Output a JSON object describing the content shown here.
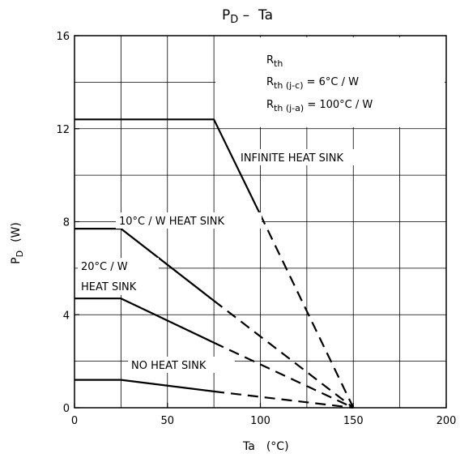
{
  "chart_data": {
    "type": "line",
    "title": {
      "main": "P",
      "sub": "D",
      "rest": " –  Ta"
    },
    "xlabel": {
      "main": "Ta",
      "unit": "(°C)"
    },
    "ylabel": {
      "main": "P",
      "sub": "D",
      "unit": "(W)"
    },
    "xlim": [
      0,
      200
    ],
    "ylim": [
      0,
      16
    ],
    "x_ticks": [
      0,
      50,
      100,
      150,
      200
    ],
    "y_ticks": [
      0,
      4,
      8,
      12,
      16
    ],
    "x_grid_step": 25,
    "y_grid_step": 2,
    "grid": true,
    "rth_box": {
      "line1": {
        "main": "R",
        "sub": "th",
        "rest": ""
      },
      "line2": {
        "main": "R",
        "sub": "th (j-c)",
        "rest": " = 6°C / W"
      },
      "line3": {
        "main": "R",
        "sub": "th (j-a)",
        "rest": " = 100°C / W"
      }
    },
    "series": [
      {
        "name": "INFINITE HEAT SINK",
        "solid": [
          [
            0,
            12.4
          ],
          [
            75,
            12.4
          ],
          [
            100,
            8.3
          ]
        ],
        "dashed": [
          [
            100,
            8.3
          ],
          [
            150,
            0
          ]
        ]
      },
      {
        "name": "10°C / W HEAT SINK",
        "solid": [
          [
            0,
            7.7
          ],
          [
            25,
            7.7
          ],
          [
            75,
            4.6
          ]
        ],
        "dashed": [
          [
            75,
            4.6
          ],
          [
            150,
            0
          ]
        ]
      },
      {
        "name": "20°C / W HEAT SINK",
        "solid": [
          [
            0,
            4.7
          ],
          [
            25,
            4.7
          ],
          [
            75,
            2.8
          ]
        ],
        "dashed": [
          [
            75,
            2.8
          ],
          [
            150,
            0
          ]
        ]
      },
      {
        "name": "NO HEAT SINK",
        "solid": [
          [
            0,
            1.2
          ],
          [
            25,
            1.2
          ],
          [
            75,
            0.7
          ]
        ],
        "dashed": [
          [
            75,
            0.7
          ],
          [
            150,
            0
          ]
        ]
      }
    ],
    "annotations": {
      "infinite": "INFINITE HEAT SINK",
      "ten": "10°C / W HEAT SINK",
      "twenty_a": "20°C / W",
      "twenty_b": "HEAT SINK",
      "none": "NO HEAT SINK"
    }
  }
}
